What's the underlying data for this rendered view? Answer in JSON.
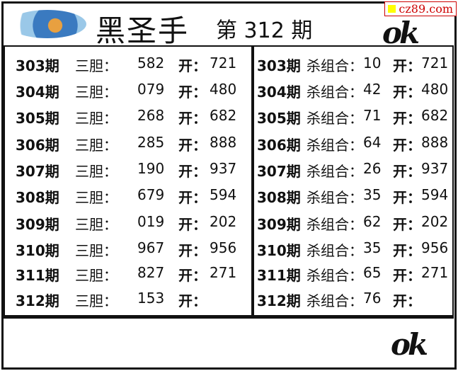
{
  "header": {
    "title": "黑圣手",
    "issue": "第 312 期",
    "watermark": "cz89.com"
  },
  "left": {
    "rows": [
      {
        "period": "303期",
        "label": "三胆：",
        "value": "582",
        "open_label": "开：",
        "open": "721"
      },
      {
        "period": "304期",
        "label": "三胆：",
        "value": "079",
        "open_label": "开：",
        "open": "480"
      },
      {
        "period": "305期",
        "label": "三胆：",
        "value": "268",
        "open_label": "开：",
        "open": "682"
      },
      {
        "period": "306期",
        "label": "三胆：",
        "value": "285",
        "open_label": "开：",
        "open": "888"
      },
      {
        "period": "307期",
        "label": "三胆：",
        "value": "190",
        "open_label": "开：",
        "open": "937"
      },
      {
        "period": "308期",
        "label": "三胆：",
        "value": "679",
        "open_label": "开：",
        "open": "594"
      },
      {
        "period": "309期",
        "label": "三胆：",
        "value": "019",
        "open_label": "开：",
        "open": "202"
      },
      {
        "period": "310期",
        "label": "三胆：",
        "value": "967",
        "open_label": "开：",
        "open": "956"
      },
      {
        "period": "311期",
        "label": "三胆：",
        "value": "827",
        "open_label": "开：",
        "open": "271"
      },
      {
        "period": "312期",
        "label": "三胆：",
        "value": "153",
        "open_label": "开：",
        "open": ""
      }
    ]
  },
  "right": {
    "rows": [
      {
        "period": "303期",
        "label": "杀组合：",
        "value": "10",
        "open_label": "开：",
        "open": "721"
      },
      {
        "period": "304期",
        "label": "杀组合：",
        "value": "42",
        "open_label": "开：",
        "open": "480"
      },
      {
        "period": "305期",
        "label": "杀组合：",
        "value": "71",
        "open_label": "开：",
        "open": "682"
      },
      {
        "period": "306期",
        "label": "杀组合：",
        "value": "64",
        "open_label": "开：",
        "open": "888"
      },
      {
        "period": "307期",
        "label": "杀组合：",
        "value": "26",
        "open_label": "开：",
        "open": "937"
      },
      {
        "period": "308期",
        "label": "杀组合：",
        "value": "35",
        "open_label": "开：",
        "open": "594"
      },
      {
        "period": "309期",
        "label": "杀组合：",
        "value": "62",
        "open_label": "开：",
        "open": "202"
      },
      {
        "period": "310期",
        "label": "杀组合：",
        "value": "35",
        "open_label": "开：",
        "open": "956"
      },
      {
        "period": "311期",
        "label": "杀组合：",
        "value": "65",
        "open_label": "开：",
        "open": "271"
      },
      {
        "period": "312期",
        "label": "杀组合：",
        "value": "76",
        "open_label": "开：",
        "open": ""
      }
    ]
  }
}
